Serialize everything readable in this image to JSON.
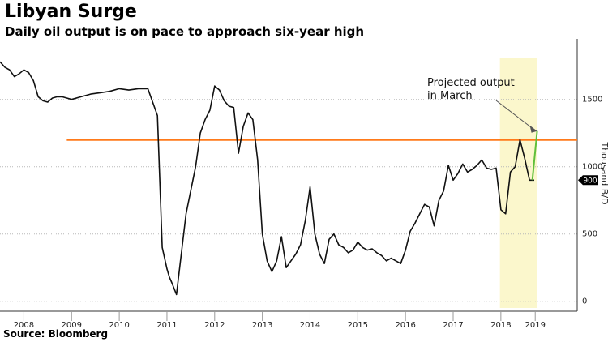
{
  "chart_data": {
    "type": "line",
    "title": "Libyan Surge",
    "subtitle": "Daily oil output is on pace to approach six-year high",
    "source": "Source: Bloomberg",
    "ylabel": "Thousand B/D",
    "ylim": [
      -50,
      1950
    ],
    "xlim": [
      2007.5,
      2019.6
    ],
    "yticks": [
      0,
      500,
      1000,
      1500
    ],
    "xticks": [
      {
        "label": "2008",
        "at": 2008.0
      },
      {
        "label": "2009",
        "at": 2009.0
      },
      {
        "label": "2010",
        "at": 2010.0
      },
      {
        "label": "2011",
        "at": 2011.0
      },
      {
        "label": "2012",
        "at": 2012.0
      },
      {
        "label": "2013",
        "at": 2013.0
      },
      {
        "label": "2014",
        "at": 2014.0
      },
      {
        "label": "2015",
        "at": 2015.0
      },
      {
        "label": "2016",
        "at": 2016.0
      },
      {
        "label": "2017",
        "at": 2017.0
      },
      {
        "label": "2018",
        "at": 2018.0
      },
      {
        "label": "2019",
        "at": 2018.72
      }
    ],
    "grid": "horizontal dotted",
    "highlight_region": {
      "from": 2017.98,
      "to": 2018.75,
      "color": "#fbf7cc"
    },
    "reference_line": {
      "value": 1200,
      "color": "#ff7a1a"
    },
    "series": [
      {
        "color": "#111111",
        "x": [
          2007.5,
          2007.6,
          2007.7,
          2007.8,
          2007.9,
          2008.0,
          2008.1,
          2008.2,
          2008.3,
          2008.4,
          2008.5,
          2008.6,
          2008.7,
          2008.8,
          2008.9,
          2009.0,
          2009.2,
          2009.4,
          2009.6,
          2009.8,
          2010.0,
          2010.2,
          2010.4,
          2010.6,
          2010.8,
          2010.9,
          2011.0,
          2011.05,
          2011.1,
          2011.2,
          2011.4,
          2011.6,
          2011.7,
          2011.8,
          2011.9,
          2012.0,
          2012.1,
          2012.2,
          2012.3,
          2012.4,
          2012.5,
          2012.6,
          2012.7,
          2012.8,
          2012.9,
          2013.0,
          2013.1,
          2013.2,
          2013.3,
          2013.4,
          2013.5,
          2013.6,
          2013.7,
          2013.8,
          2013.9,
          2014.0,
          2014.1,
          2014.2,
          2014.3,
          2014.4,
          2014.5,
          2014.6,
          2014.7,
          2014.8,
          2014.9,
          2015.0,
          2015.1,
          2015.2,
          2015.3,
          2015.4,
          2015.5,
          2015.6,
          2015.7,
          2015.8,
          2015.9,
          2016.0,
          2016.1,
          2016.2,
          2016.3,
          2016.4,
          2016.5,
          2016.6,
          2016.7,
          2016.8,
          2016.9,
          2017.0,
          2017.1,
          2017.2,
          2017.3,
          2017.4,
          2017.5,
          2017.6,
          2017.7,
          2017.8,
          2017.9,
          2018.0,
          2018.1,
          2018.2,
          2018.3,
          2018.4,
          2018.5,
          2018.6,
          2018.7
        ],
        "y": [
          1780,
          1740,
          1720,
          1670,
          1690,
          1720,
          1700,
          1640,
          1520,
          1490,
          1480,
          1510,
          1520,
          1520,
          1510,
          1500,
          1520,
          1540,
          1550,
          1560,
          1580,
          1570,
          1580,
          1580,
          1380,
          400,
          240,
          180,
          140,
          50,
          650,
          1000,
          1250,
          1350,
          1420,
          1600,
          1570,
          1490,
          1450,
          1440,
          1100,
          1300,
          1400,
          1350,
          1050,
          500,
          300,
          220,
          300,
          480,
          250,
          300,
          350,
          420,
          600,
          850,
          500,
          350,
          280,
          460,
          500,
          420,
          400,
          360,
          380,
          440,
          400,
          380,
          390,
          360,
          340,
          300,
          320,
          300,
          280,
          380,
          520,
          580,
          650,
          720,
          700,
          560,
          750,
          820,
          1010,
          900,
          950,
          1020,
          960,
          980,
          1010,
          1050,
          990,
          980,
          990,
          680,
          650,
          960,
          1000,
          1200,
          1060,
          900,
          900
        ]
      },
      {
        "name": "Projected output in March",
        "color": "#5fbf3a",
        "x": [
          2018.66,
          2018.76
        ],
        "y": [
          900,
          1265
        ]
      }
    ],
    "annotations": [
      {
        "lines": [
          "Projected output",
          "in March"
        ],
        "arrow_to": {
          "x": 2018.76,
          "y": 1265
        }
      }
    ],
    "last_value_badge": {
      "text": "900",
      "value": 900
    }
  }
}
